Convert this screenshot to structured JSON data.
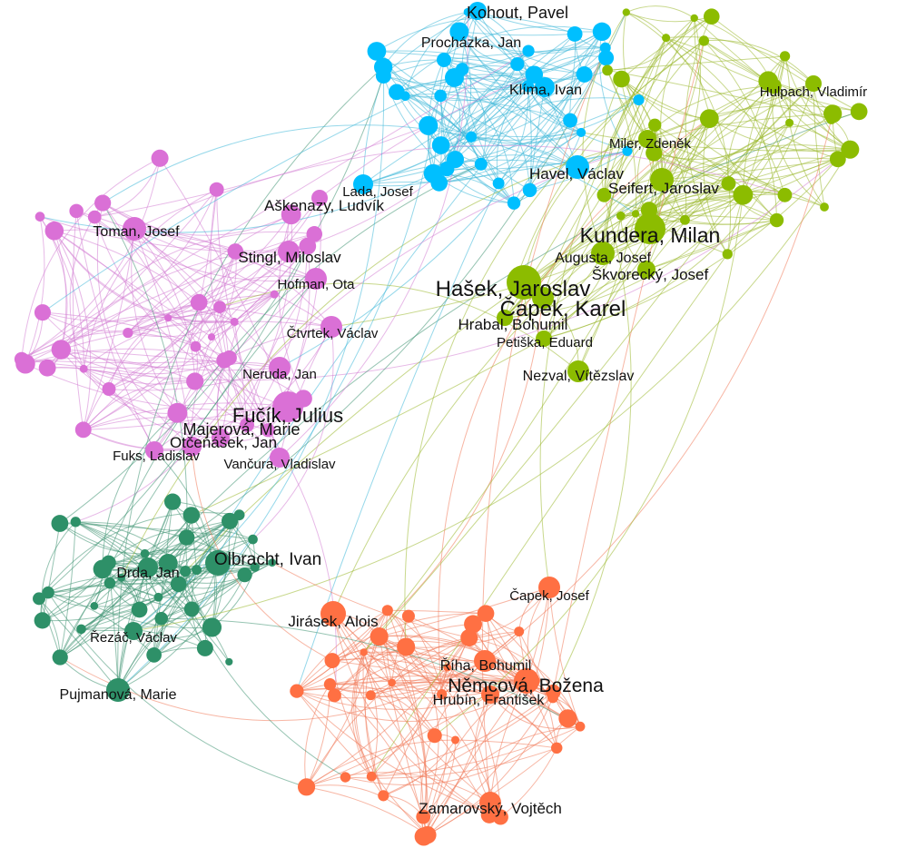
{
  "nodes": [
    {
      "label": "Kohout, Pavel"
    },
    {
      "label": "Procházka, Jan"
    },
    {
      "label": "Klíma, Ivan"
    },
    {
      "label": "Hulpach, Vladimír"
    },
    {
      "label": "Miler, Zdeněk"
    },
    {
      "label": "Havel, Václav"
    },
    {
      "label": "Seifert, Jaroslav"
    },
    {
      "label": "Lada, Josef"
    },
    {
      "label": "Aškenazy, Ludvík"
    },
    {
      "label": "Toman, Josef"
    },
    {
      "label": "Kundera, Milan"
    },
    {
      "label": "Stingl, Miloslav"
    },
    {
      "label": "Augusta, Josef"
    },
    {
      "label": "Škvorecký, Josef"
    },
    {
      "label": "Hašek, Jaroslav"
    },
    {
      "label": "Hofman, Ota"
    },
    {
      "label": "Čapek, Karel"
    },
    {
      "label": "Hrabal, Bohumil"
    },
    {
      "label": "Čtvrtek, Václav"
    },
    {
      "label": "Petiška, Eduard"
    },
    {
      "label": "Neruda, Jan"
    },
    {
      "label": "Nezval, Vítězslav"
    },
    {
      "label": "Fučík, Julius"
    },
    {
      "label": "Majerová, Marie"
    },
    {
      "label": "Otčenášek, Jan"
    },
    {
      "label": "Fuks, Ladislav"
    },
    {
      "label": "Vančura, Vladislav"
    },
    {
      "label": "Olbracht, Ivan"
    },
    {
      "label": "Drda, Jan"
    },
    {
      "label": "Čapek, Josef"
    },
    {
      "label": "Jirásek, Alois"
    },
    {
      "label": "Řezáč, Václav"
    },
    {
      "label": "Říha, Bohumil"
    },
    {
      "label": "Němcová, Božena"
    },
    {
      "label": "Pujmanová, Marie"
    },
    {
      "label": "Hrubín, František"
    },
    {
      "label": "Zamarovský, Vojtěch"
    }
  ]
}
